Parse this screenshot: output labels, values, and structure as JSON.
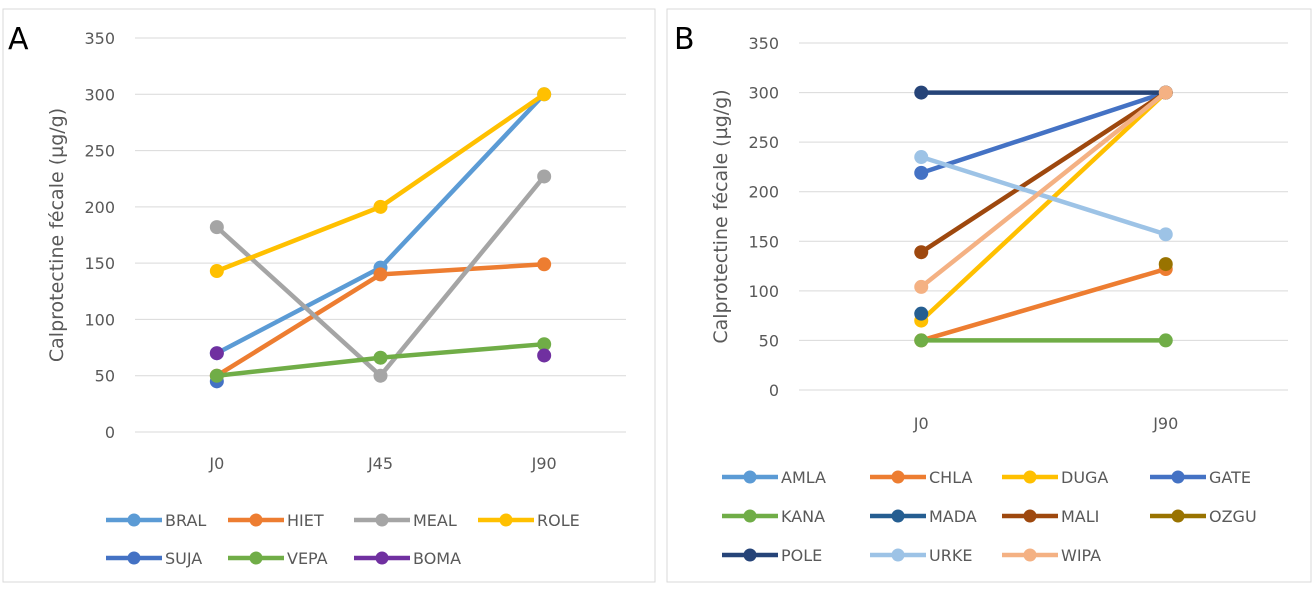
{
  "chart_data": [
    {
      "panel_label": "A",
      "type": "line",
      "categories": [
        "J0",
        "J45",
        "J90"
      ],
      "ylabel": "Calprotectine fécale (µg/g)",
      "xlabel": "",
      "ylim": [
        0,
        350
      ],
      "yticks": [
        0,
        50,
        100,
        150,
        200,
        250,
        300,
        350
      ],
      "grid": true,
      "legend_position": "bottom",
      "series": [
        {
          "name": "BRAL",
          "color": "#5b9bd5",
          "values": [
            70,
            146,
            300
          ]
        },
        {
          "name": "HIET",
          "color": "#ed7d31",
          "values": [
            50,
            140,
            149
          ]
        },
        {
          "name": "MEAL",
          "color": "#a5a5a5",
          "values": [
            182,
            50,
            227
          ]
        },
        {
          "name": "ROLE",
          "color": "#ffc000",
          "values": [
            143,
            200,
            300
          ]
        },
        {
          "name": "SUJA",
          "color": "#4472c4",
          "values": [
            45,
            null,
            null
          ]
        },
        {
          "name": "VEPA",
          "color": "#70ad47",
          "values": [
            50,
            66,
            78
          ]
        },
        {
          "name": "BOMA",
          "color": "#7030a0",
          "values": [
            70,
            null,
            68
          ]
        }
      ]
    },
    {
      "panel_label": "B",
      "type": "line",
      "categories": [
        "J0",
        "J90"
      ],
      "ylabel": "Calprotectine fécale (µg/g)",
      "xlabel": "",
      "ylim": [
        0,
        350
      ],
      "yticks": [
        0,
        50,
        100,
        150,
        200,
        250,
        300,
        350
      ],
      "grid": true,
      "legend_position": "bottom",
      "series": [
        {
          "name": "AMLA",
          "color": "#5b9bd5",
          "values": [
            null,
            null
          ]
        },
        {
          "name": "CHLA",
          "color": "#ed7d31",
          "values": [
            50,
            122
          ]
        },
        {
          "name": "DUGA",
          "color": "#ffc000",
          "values": [
            70,
            300
          ]
        },
        {
          "name": "GATE",
          "color": "#4472c4",
          "values": [
            219,
            300
          ]
        },
        {
          "name": "KANA",
          "color": "#70ad47",
          "values": [
            50,
            50
          ]
        },
        {
          "name": "MADA",
          "color": "#255e91",
          "values": [
            77,
            null
          ]
        },
        {
          "name": "MALI",
          "color": "#9e480e",
          "values": [
            139,
            300
          ]
        },
        {
          "name": "OZGU",
          "color": "#997300",
          "values": [
            null,
            127
          ]
        },
        {
          "name": "POLE",
          "color": "#264478",
          "values": [
            300,
            300
          ]
        },
        {
          "name": "URKE",
          "color": "#9dc3e6",
          "values": [
            235,
            157
          ]
        },
        {
          "name": "WIPA",
          "color": "#f4b183",
          "values": [
            104,
            300
          ]
        }
      ]
    }
  ]
}
